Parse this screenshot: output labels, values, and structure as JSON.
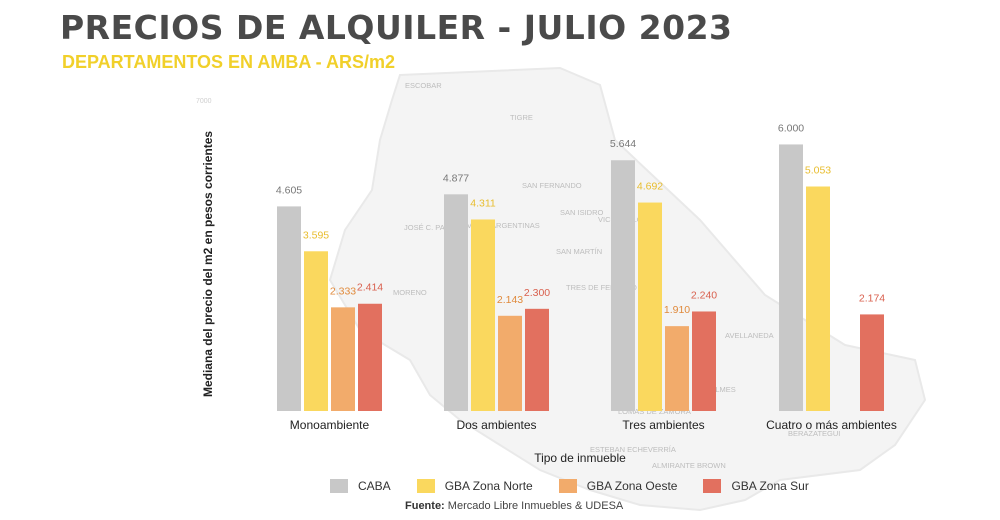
{
  "header": {
    "title": "PRECIOS DE ALQUILER - JULIO 2023",
    "subtitle": "DEPARTAMENTOS EN AMBA - ARS/m2"
  },
  "map_labels": [
    "ESCOBAR",
    "TIGRE",
    "SAN FERNANDO",
    "MALVINAS ARGENTINAS",
    "SAN ISIDRO",
    "JOSÉ C. PAZ",
    "VICENTE LÓPEZ",
    "SAN MARTÍN",
    "TRES DE FEBRERO",
    "MORENO",
    "AVELLANEDA",
    "QUILMES",
    "LOMAS DE ZAMORA",
    "ESTEBAN ECHEVERRÍA",
    "ALMIRANTE BROWN",
    "BERAZATEGUI"
  ],
  "chart_data": {
    "type": "bar",
    "xlabel": "Tipo de inmueble",
    "ylabel": "Mediana del precio del m2 en pesos corrientes",
    "ylim": [
      0,
      7000
    ],
    "y_top_tick_label": "7000",
    "grid": false,
    "legend_position": "bottom",
    "categories": [
      "Monoambiente",
      "Dos ambientes",
      "Tres ambientes",
      "Cuatro o más ambientes"
    ],
    "series": [
      {
        "name": "CABA",
        "color": "#c8c8c8",
        "label_color": "#777777",
        "values": [
          4605,
          4877,
          5644,
          6000
        ],
        "labels": [
          "4.605",
          "4.877",
          "5.644",
          "6.000"
        ]
      },
      {
        "name": "GBA Zona Norte",
        "color": "#fad85e",
        "label_color": "#e8bd2e",
        "values": [
          3595,
          4311,
          4692,
          5053
        ],
        "labels": [
          "3.595",
          "4.311",
          "4.692",
          "5.053"
        ]
      },
      {
        "name": "GBA Zona Oeste",
        "color": "#f2ab6b",
        "label_color": "#e08a3c",
        "values": [
          2333,
          2143,
          1910,
          null
        ],
        "labels": [
          "2.333",
          "2.143",
          "1.910",
          ""
        ]
      },
      {
        "name": "GBA Zona Sur",
        "color": "#e2705f",
        "label_color": "#d9604e",
        "values": [
          2414,
          2300,
          2240,
          2174
        ],
        "labels": [
          "2.414",
          "2.300",
          "2.240",
          "2.174"
        ]
      }
    ]
  },
  "footer": {
    "source_label": "Fuente:",
    "source_text": "Mercado Libre Inmuebles & UDESA"
  }
}
